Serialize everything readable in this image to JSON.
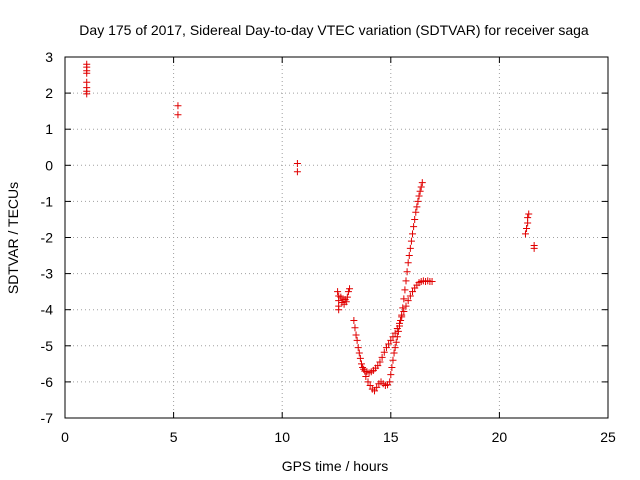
{
  "chart_data": {
    "type": "scatter",
    "title": "Day 175 of 2017, Sidereal Day-to-day VTEC variation (SDTVAR) for receiver saga",
    "xlabel": "GPS time / hours",
    "ylabel": "SDTVAR / TECUs",
    "xlim": [
      0,
      25
    ],
    "ylim": [
      -7,
      3
    ],
    "xticks": [
      0,
      5,
      10,
      15,
      20,
      25
    ],
    "yticks": [
      3,
      2,
      1,
      0,
      -1,
      -2,
      -3,
      -4,
      -5,
      -6,
      -7
    ],
    "grid": true,
    "legend": "none",
    "marker": "+",
    "color": "#e00000",
    "series": [
      {
        "points": [
          [
            1.0,
            2.8
          ],
          [
            1.0,
            2.72
          ],
          [
            1.0,
            2.62
          ],
          [
            1.0,
            2.55
          ],
          [
            1.0,
            2.3
          ],
          [
            1.0,
            2.15
          ],
          [
            1.0,
            2.05
          ],
          [
            1.0,
            1.98
          ],
          [
            5.2,
            1.65
          ],
          [
            5.2,
            1.4
          ],
          [
            10.7,
            0.05
          ],
          [
            10.7,
            -0.18
          ],
          [
            12.55,
            -3.5
          ],
          [
            12.6,
            -3.62
          ],
          [
            12.6,
            -3.75
          ],
          [
            12.6,
            -3.9
          ],
          [
            12.6,
            -4.0
          ],
          [
            12.7,
            -3.65
          ],
          [
            12.75,
            -3.8
          ],
          [
            12.8,
            -3.7
          ],
          [
            12.85,
            -3.85
          ],
          [
            12.9,
            -3.72
          ],
          [
            12.95,
            -3.78
          ],
          [
            13.0,
            -3.65
          ],
          [
            13.05,
            -3.5
          ],
          [
            13.1,
            -3.42
          ],
          [
            13.3,
            -4.3
          ],
          [
            13.35,
            -4.5
          ],
          [
            13.4,
            -4.7
          ],
          [
            13.45,
            -4.85
          ],
          [
            13.5,
            -5.05
          ],
          [
            13.55,
            -5.2
          ],
          [
            13.6,
            -5.35
          ],
          [
            13.65,
            -5.5
          ],
          [
            13.7,
            -5.6
          ],
          [
            13.75,
            -5.65
          ],
          [
            13.8,
            -5.7
          ],
          [
            13.9,
            -5.72
          ],
          [
            14.0,
            -5.75
          ],
          [
            14.1,
            -5.72
          ],
          [
            14.2,
            -5.68
          ],
          [
            14.3,
            -5.62
          ],
          [
            14.4,
            -5.55
          ],
          [
            14.5,
            -5.45
          ],
          [
            14.6,
            -5.32
          ],
          [
            14.7,
            -5.18
          ],
          [
            14.8,
            -5.05
          ],
          [
            14.9,
            -4.95
          ],
          [
            15.0,
            -4.85
          ],
          [
            15.1,
            -4.75
          ],
          [
            15.2,
            -4.65
          ],
          [
            15.3,
            -4.52
          ],
          [
            15.4,
            -4.38
          ],
          [
            15.5,
            -4.2
          ],
          [
            15.6,
            -4.05
          ],
          [
            15.7,
            -3.9
          ],
          [
            15.8,
            -3.75
          ],
          [
            15.9,
            -3.62
          ],
          [
            16.0,
            -3.5
          ],
          [
            16.1,
            -3.4
          ],
          [
            16.2,
            -3.32
          ],
          [
            16.3,
            -3.25
          ],
          [
            16.4,
            -3.22
          ],
          [
            16.5,
            -3.2
          ],
          [
            16.6,
            -3.22
          ],
          [
            16.7,
            -3.2
          ],
          [
            16.8,
            -3.22
          ],
          [
            16.9,
            -3.22
          ],
          [
            13.85,
            -5.85
          ],
          [
            13.95,
            -6.0
          ],
          [
            14.05,
            -6.1
          ],
          [
            14.15,
            -6.2
          ],
          [
            14.25,
            -6.25
          ],
          [
            14.35,
            -6.15
          ],
          [
            14.45,
            -6.05
          ],
          [
            14.55,
            -6.0
          ],
          [
            14.65,
            -6.05
          ],
          [
            14.75,
            -6.1
          ],
          [
            14.85,
            -6.08
          ],
          [
            14.95,
            -6.0
          ],
          [
            15.0,
            -5.8
          ],
          [
            15.05,
            -5.6
          ],
          [
            15.1,
            -5.4
          ],
          [
            15.15,
            -5.2
          ],
          [
            15.2,
            -5.05
          ],
          [
            15.25,
            -4.9
          ],
          [
            15.3,
            -4.75
          ],
          [
            15.35,
            -4.6
          ],
          [
            15.4,
            -4.45
          ],
          [
            15.45,
            -4.3
          ],
          [
            15.5,
            -4.15
          ],
          [
            15.55,
            -3.95
          ],
          [
            15.6,
            -3.7
          ],
          [
            15.65,
            -3.45
          ],
          [
            15.7,
            -3.2
          ],
          [
            15.75,
            -2.95
          ],
          [
            15.8,
            -2.7
          ],
          [
            15.85,
            -2.5
          ],
          [
            15.9,
            -2.3
          ],
          [
            15.95,
            -2.1
          ],
          [
            16.0,
            -1.9
          ],
          [
            16.05,
            -1.7
          ],
          [
            16.1,
            -1.5
          ],
          [
            16.15,
            -1.3
          ],
          [
            16.2,
            -1.15
          ],
          [
            16.25,
            -1.0
          ],
          [
            16.3,
            -0.85
          ],
          [
            16.35,
            -0.72
          ],
          [
            16.4,
            -0.6
          ],
          [
            16.45,
            -0.48
          ],
          [
            21.2,
            -1.9
          ],
          [
            21.25,
            -1.75
          ],
          [
            21.3,
            -1.6
          ],
          [
            21.3,
            -1.45
          ],
          [
            21.35,
            -1.35
          ],
          [
            21.6,
            -2.22
          ],
          [
            21.6,
            -2.3
          ]
        ]
      }
    ]
  }
}
